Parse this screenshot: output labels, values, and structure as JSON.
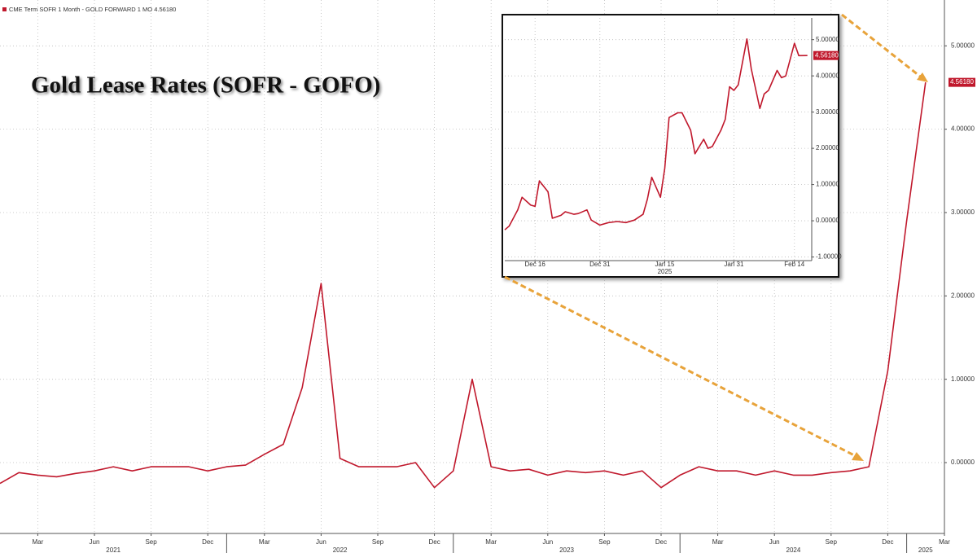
{
  "chart_data": [
    {
      "type": "line",
      "title": "Gold Lease Rates (SOFR - GOFO)",
      "x": [
        "2021-01",
        "2021-02",
        "2021-03",
        "2021-04",
        "2021-05",
        "2021-06",
        "2021-07",
        "2021-08",
        "2021-09",
        "2021-10",
        "2021-11",
        "2021-12",
        "2022-01",
        "2022-02",
        "2022-03",
        "2022-04",
        "2022-05",
        "2022-06",
        "2022-07",
        "2022-08",
        "2022-09",
        "2022-10",
        "2022-11",
        "2022-12",
        "2023-01",
        "2023-02",
        "2023-03",
        "2023-04",
        "2023-05",
        "2023-06",
        "2023-07",
        "2023-08",
        "2023-09",
        "2023-10",
        "2023-11",
        "2023-12",
        "2024-01",
        "2024-02",
        "2024-03",
        "2024-04",
        "2024-05",
        "2024-06",
        "2024-07",
        "2024-08",
        "2024-09",
        "2024-10",
        "2024-11",
        "2024-12",
        "2025-01",
        "2025-02"
      ],
      "series": [
        {
          "name": "CME Term SOFR 1 Month - GOLD FORWARD 1 MO",
          "color": "#c0182c",
          "values": [
            -0.25,
            -0.12,
            -0.15,
            -0.17,
            -0.13,
            -0.1,
            -0.05,
            -0.1,
            -0.05,
            -0.05,
            -0.05,
            -0.1,
            -0.05,
            -0.03,
            0.1,
            0.22,
            0.9,
            2.15,
            0.05,
            -0.05,
            -0.05,
            -0.05,
            0.0,
            -0.3,
            -0.1,
            1.0,
            -0.05,
            -0.1,
            -0.08,
            -0.15,
            -0.1,
            -0.12,
            -0.1,
            -0.15,
            -0.1,
            -0.3,
            -0.15,
            -0.05,
            -0.1,
            -0.1,
            -0.15,
            -0.1,
            -0.15,
            -0.15,
            -0.12,
            -0.1,
            -0.05,
            1.1,
            2.9,
            4.5618
          ]
        }
      ],
      "value_label": "4.56180",
      "xlim": [
        "2021-01",
        "2025-03"
      ],
      "xticks": [
        {
          "value": "2021-03",
          "label": "Mar"
        },
        {
          "value": "2021-06",
          "label": "Jun"
        },
        {
          "value": "2021-09",
          "label": "Sep"
        },
        {
          "value": "2021-12",
          "label": "Dec"
        },
        {
          "value": "2022-03",
          "label": "Mar"
        },
        {
          "value": "2022-06",
          "label": "Jun"
        },
        {
          "value": "2022-09",
          "label": "Sep"
        },
        {
          "value": "2022-12",
          "label": "Dec"
        },
        {
          "value": "2023-03",
          "label": "Mar"
        },
        {
          "value": "2023-06",
          "label": "Jun"
        },
        {
          "value": "2023-09",
          "label": "Sep"
        },
        {
          "value": "2023-12",
          "label": "Dec"
        },
        {
          "value": "2024-03",
          "label": "Mar"
        },
        {
          "value": "2024-06",
          "label": "Jun"
        },
        {
          "value": "2024-09",
          "label": "Sep"
        },
        {
          "value": "2024-12",
          "label": "Dec"
        },
        {
          "value": "2025-03",
          "label": "Mar"
        }
      ],
      "x_groups": [
        "2021",
        "2022",
        "2023",
        "2024",
        "2025"
      ],
      "ylim": [
        -0.85,
        5.55
      ],
      "yticks": [
        {
          "value": 0,
          "label": "0.00000"
        },
        {
          "value": 1,
          "label": "1.00000"
        },
        {
          "value": 2,
          "label": "2.00000"
        },
        {
          "value": 3,
          "label": "3.00000"
        },
        {
          "value": 4,
          "label": "4.00000"
        },
        {
          "value": 5,
          "label": "5.00000"
        }
      ],
      "grid": true
    },
    {
      "type": "line",
      "x": [
        "Dec 9",
        "Dec 10",
        "Dec 12",
        "Dec 13",
        "Dec 15",
        "Dec 16",
        "Dec 17",
        "Dec 19",
        "Dec 20",
        "Dec 22",
        "Dec 23",
        "Dec 25",
        "Dec 26",
        "Dec 28",
        "Dec 29",
        "Dec 31",
        "Jan 2",
        "Jan 4",
        "Jan 6",
        "Jan 8",
        "Jan 10",
        "Jan 11",
        "Jan 12",
        "Jan 14",
        "Jan 15",
        "Jan 16",
        "Jan 18",
        "Jan 19",
        "Jan 21",
        "Jan 22",
        "Jan 24",
        "Jan 25",
        "Jan 26",
        "Jan 28",
        "Jan 29",
        "Jan 30",
        "Jan 31",
        "Feb 1",
        "Feb 3",
        "Feb 4",
        "Feb 6",
        "Feb 7",
        "Feb 8",
        "Feb 10",
        "Feb 11",
        "Feb 12",
        "Feb 14",
        "Feb 15",
        "Feb 17"
      ],
      "series": [
        {
          "color": "#c0182c",
          "values": [
            -0.25,
            -0.15,
            0.3,
            0.65,
            0.43,
            0.4,
            1.1,
            0.8,
            0.07,
            0.15,
            0.25,
            0.18,
            0.2,
            0.3,
            0.02,
            -0.12,
            -0.05,
            -0.02,
            -0.05,
            0.02,
            0.18,
            0.6,
            1.2,
            0.65,
            1.45,
            2.85,
            2.98,
            2.98,
            2.5,
            1.85,
            2.25,
            2.0,
            2.05,
            2.5,
            2.8,
            3.7,
            3.6,
            3.75,
            5.02,
            4.2,
            3.1,
            3.5,
            3.6,
            4.15,
            3.95,
            4.0,
            4.9,
            4.56,
            4.5618
          ]
        }
      ],
      "value_label": "4.56180",
      "xlim": [
        "Dec 9",
        "Feb 18"
      ],
      "xticks": [
        "Dec 16",
        "Dec 31",
        "Jan 15",
        "Jan 31",
        "Feb 14"
      ],
      "x_groups": [
        "2025"
      ],
      "ylim": [
        -1.1,
        5.6
      ],
      "yticks": [
        {
          "value": -1,
          "label": "-1.00000"
        },
        {
          "value": 0,
          "label": "0.00000"
        },
        {
          "value": 1,
          "label": "1.00000"
        },
        {
          "value": 2,
          "label": "2.00000"
        },
        {
          "value": 3,
          "label": "3.00000"
        },
        {
          "value": 4,
          "label": "4.00000"
        },
        {
          "value": 5,
          "label": "5.00000"
        }
      ],
      "grid": true
    }
  ]
}
